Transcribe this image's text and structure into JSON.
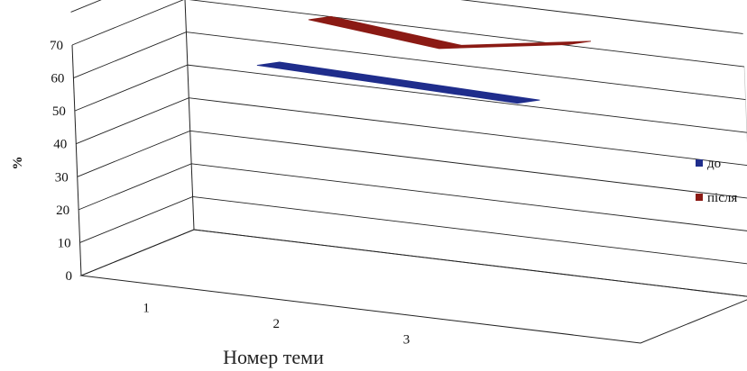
{
  "chart_data": {
    "type": "line",
    "subtype": "3d-ribbon",
    "categories": [
      "1",
      "2",
      "3"
    ],
    "series": [
      {
        "name": "до",
        "values": [
          57,
          56,
          55
        ],
        "color": "#1f2d8c"
      },
      {
        "name": "після",
        "values": [
          71,
          67,
          73
        ],
        "color": "#8b1a14"
      }
    ],
    "xlabel": "Номер теми",
    "ylabel": "%",
    "ylim": [
      0,
      70
    ],
    "yticks": [
      0,
      10,
      20,
      30,
      40,
      50,
      60,
      70
    ],
    "grid": true,
    "legend_position": "right"
  }
}
